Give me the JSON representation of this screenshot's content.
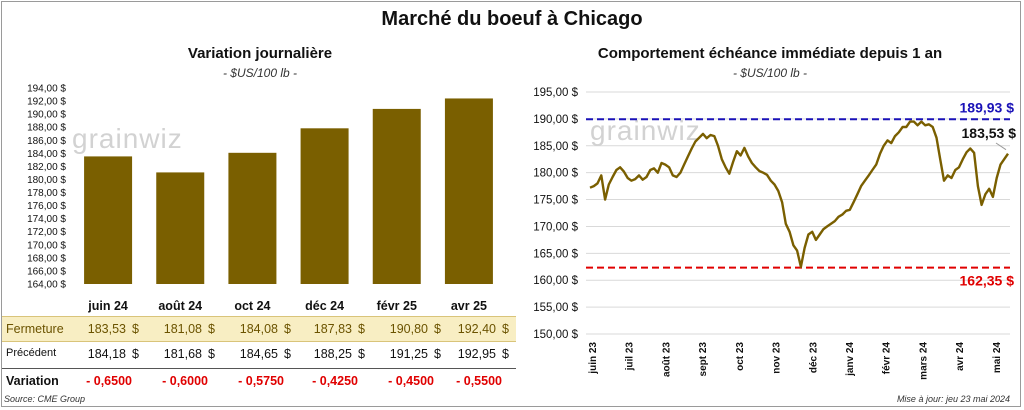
{
  "main_title": "Marché du boeuf à Chicago",
  "left": {
    "title": "Variation journalière",
    "unit": "- $US/100 lb -"
  },
  "right": {
    "title": "Comportement échéance immédiate depuis 1 an",
    "unit": "- $US/100 lb -"
  },
  "watermark": "grainwiz",
  "colors": {
    "bar": "#7a5f00",
    "line": "#7a5f00",
    "high": "#1a12b8",
    "low": "#e00000"
  },
  "table": {
    "currency": "$",
    "rows": [
      {
        "label": "Fermeture",
        "values": [
          "183,53",
          "181,08",
          "184,08",
          "187,83",
          "190,80",
          "192,40"
        ]
      },
      {
        "label": "Précédent",
        "values": [
          "184,18",
          "181,68",
          "184,65",
          "188,25",
          "191,25",
          "192,95"
        ]
      },
      {
        "label": "Variation",
        "values": [
          "- 0,6500",
          "- 0,6000",
          "- 0,5750",
          "- 0,4250",
          "- 0,4500",
          "- 0,5500"
        ]
      }
    ]
  },
  "source": "Source: CME Group",
  "updated": "Mise à jour: jeu 23 mai 2024",
  "chart_data": [
    {
      "type": "bar",
      "title": "Variation journalière",
      "categories": [
        "juin 24",
        "août 24",
        "oct 24",
        "déc 24",
        "févr 25",
        "avr 25"
      ],
      "values": [
        183.53,
        181.08,
        184.08,
        187.83,
        190.8,
        192.4
      ],
      "ylim": [
        164,
        194
      ],
      "yticks": [
        "164,00 $",
        "166,00 $",
        "168,00 $",
        "170,00 $",
        "172,00 $",
        "174,00 $",
        "176,00 $",
        "178,00 $",
        "180,00 $",
        "182,00 $",
        "184,00 $",
        "186,00 $",
        "188,00 $",
        "190,00 $",
        "192,00 $",
        "194,00 $"
      ],
      "grid": false
    },
    {
      "type": "line",
      "title": "Comportement échéance immédiate depuis 1 an",
      "x_ticks": [
        "juin 23",
        "juil 23",
        "août 23",
        "sept 23",
        "oct 23",
        "nov 23",
        "déc 23",
        "janv 24",
        "févr 24",
        "mars 24",
        "avr 24",
        "mai 24"
      ],
      "ylim": [
        150,
        195
      ],
      "yticks": [
        "150,00 $",
        "155,00 $",
        "160,00 $",
        "165,00 $",
        "170,00 $",
        "175,00 $",
        "180,00 $",
        "185,00 $",
        "190,00 $",
        "195,00 $"
      ],
      "grid": true,
      "series": [
        {
          "name": "",
          "values": [
            177.2,
            177.5,
            178.0,
            179.5,
            175.0,
            177.8,
            179.2,
            180.5,
            181.0,
            180.2,
            179.0,
            178.5,
            178.8,
            179.5,
            178.7,
            179.2,
            180.5,
            180.8,
            180.0,
            181.8,
            181.5,
            181.0,
            179.5,
            179.2,
            180.0,
            181.5,
            183.0,
            184.5,
            185.8,
            186.5,
            187.2,
            186.4,
            187.0,
            186.8,
            185.0,
            182.5,
            181.0,
            179.8,
            182.0,
            184.0,
            183.2,
            184.6,
            183.0,
            181.8,
            181.0,
            180.3,
            180.0,
            179.6,
            178.5,
            177.8,
            176.6,
            174.5,
            170.5,
            169.0,
            166.5,
            165.5,
            162.5,
            166.0,
            168.5,
            169.0,
            167.5,
            168.5,
            169.5,
            170.0,
            170.5,
            171.0,
            171.8,
            172.2,
            172.9,
            173.1,
            174.5,
            176.0,
            177.5,
            178.5,
            179.5,
            180.5,
            181.5,
            183.5,
            185.0,
            186.0,
            185.5,
            186.8,
            187.5,
            188.5,
            188.5,
            189.5,
            189.5,
            188.8,
            189.5,
            188.8,
            189.0,
            188.5,
            186.5,
            182.5,
            178.5,
            179.5,
            179.0,
            180.5,
            181.0,
            182.5,
            183.8,
            184.5,
            183.7,
            177.5,
            174.0,
            176.0,
            177.0,
            175.5,
            179.0,
            181.5,
            182.5,
            183.53
          ]
        }
      ],
      "annotations": {
        "high": "189,93 $",
        "last": "183,53 $",
        "low": "162,35 $"
      },
      "reference_lines": {
        "high": 189.93,
        "low": 162.35
      }
    }
  ]
}
